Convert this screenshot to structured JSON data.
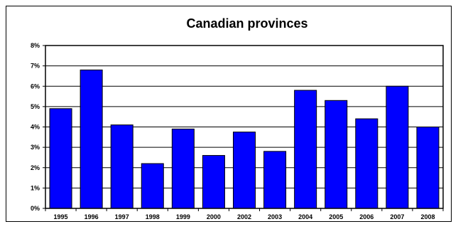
{
  "chart_data": {
    "type": "bar",
    "title": "Canadian provinces",
    "xlabel": "",
    "ylabel": "",
    "categories": [
      "1995",
      "1996",
      "1997",
      "1998",
      "1999",
      "2000",
      "2002",
      "2003",
      "2004",
      "2005",
      "2006",
      "2007",
      "2008"
    ],
    "values": [
      4.9,
      6.8,
      4.1,
      2.2,
      3.9,
      2.6,
      3.75,
      2.8,
      5.8,
      5.3,
      4.4,
      6.0,
      4.0
    ],
    "ylim": [
      0,
      8
    ],
    "y_ticks": [
      "0%",
      "1%",
      "2%",
      "3%",
      "4%",
      "5%",
      "6%",
      "7%",
      "8%"
    ],
    "grid": true,
    "legend": "none",
    "bar_color": "#0000ff",
    "bar_edge_color": "#000000",
    "plot_background": "#ffffff"
  }
}
